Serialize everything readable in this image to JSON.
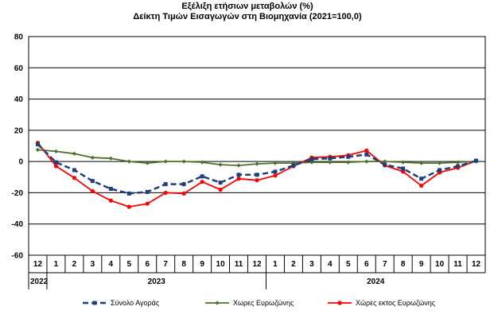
{
  "chart_data": {
    "type": "line",
    "title": "Εξέλιξη ετήσιων μεταβολών (%)",
    "subtitle": "Δείκτη Τιμών Εισαγωγών στη Βιομηχανία (2021=100,0)",
    "xlabel": "",
    "ylabel": "",
    "ylim": [
      -60,
      80
    ],
    "yticks": [
      -60,
      -40,
      -20,
      0,
      20,
      40,
      60,
      80
    ],
    "grid": true,
    "legend_position": "bottom",
    "categories": [
      "12",
      "1",
      "2",
      "3",
      "4",
      "5",
      "6",
      "7",
      "8",
      "9",
      "10",
      "11",
      "12",
      "1",
      "2",
      "3",
      "4",
      "5",
      "6",
      "7",
      "8",
      "9",
      "10",
      "11",
      "12"
    ],
    "years": [
      {
        "label": "2022",
        "span": 1
      },
      {
        "label": "2023",
        "span": 12
      },
      {
        "label": "2024",
        "span": 12
      }
    ],
    "series": [
      {
        "name": "Σύνολο Αγοράς",
        "color": "#1f3f7a",
        "style": "dashed-square",
        "values": [
          11,
          -0.5,
          -5.5,
          -12.5,
          -17.5,
          -20.5,
          -19.5,
          -14.5,
          -14.5,
          -9.5,
          -13.5,
          -8.5,
          -8.5,
          -6.5,
          -2.5,
          1.5,
          2,
          3,
          4.5,
          -2,
          -4.5,
          -11,
          -5.5,
          -3,
          0.5
        ]
      },
      {
        "name": "Χωρες Ευρωζώνης",
        "color": "#4f6f28",
        "style": "solid-diamond",
        "values": [
          7.5,
          6.5,
          5,
          2.5,
          2,
          0,
          -1,
          0,
          0,
          -0.5,
          -2,
          -2.5,
          -1.5,
          -1,
          -1,
          -0.5,
          -0.5,
          -0.5,
          0,
          0,
          -0.5,
          -1,
          -1,
          -0.5,
          0
        ]
      },
      {
        "name": "Χώρες εκτος Ευρωζώνης",
        "color": "#ff0000",
        "style": "solid-circle",
        "values": [
          12,
          -3,
          -10.5,
          -19,
          -25,
          -29,
          -27,
          -20,
          -20.5,
          -13,
          -18,
          -11,
          -12,
          -9,
          -3,
          2.5,
          3,
          4,
          7,
          -2.5,
          -6.5,
          -15.5,
          -7,
          -4,
          0.5
        ]
      }
    ]
  }
}
